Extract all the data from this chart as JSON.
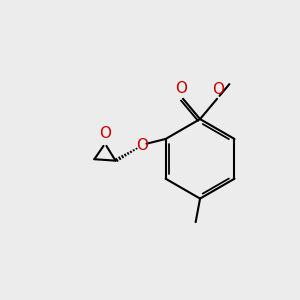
{
  "bg_color": "#ececec",
  "black": "#000000",
  "red": "#cc0000",
  "line_width": 1.5,
  "fig_size": [
    3.0,
    3.0
  ],
  "dpi": 100,
  "xlim": [
    0,
    10
  ],
  "ylim": [
    0,
    10
  ]
}
